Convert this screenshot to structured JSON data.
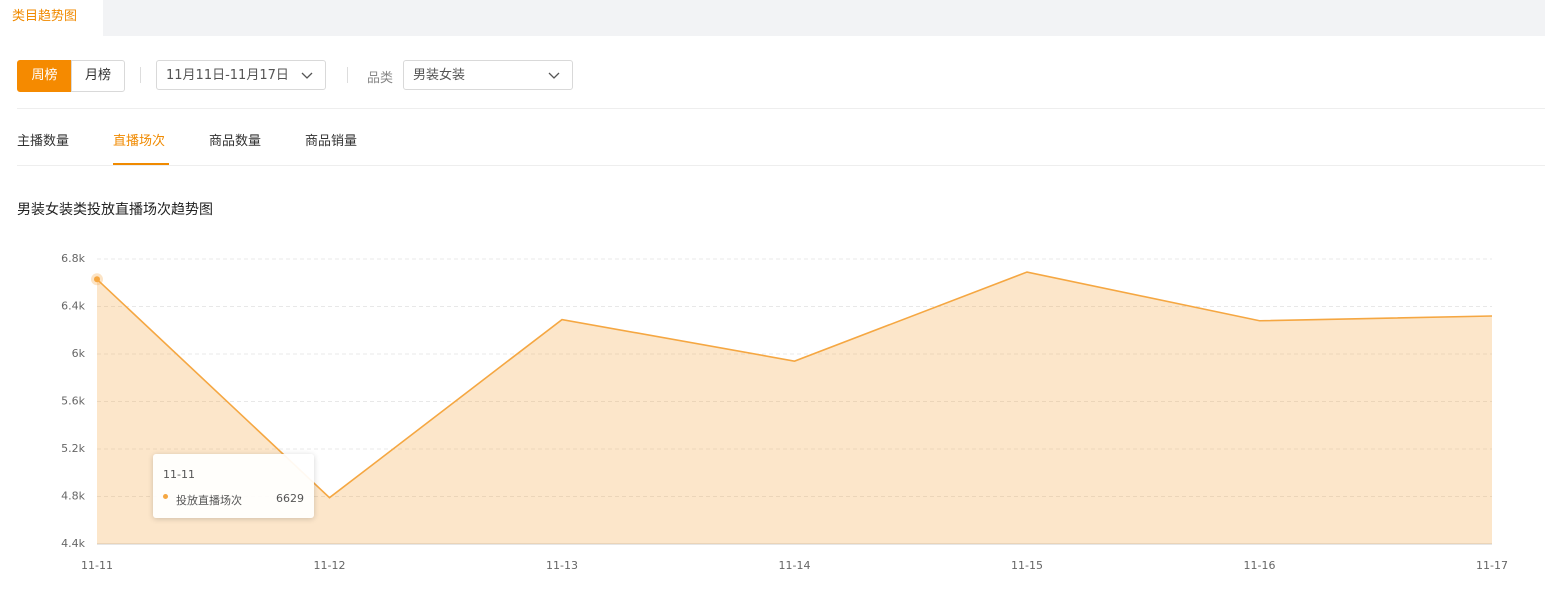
{
  "header": {
    "tab": "类目趋势图"
  },
  "filters": {
    "period_buttons": [
      "周榜",
      "月榜"
    ],
    "date_range": "11月11日-11月17日",
    "category_label": "品类",
    "category_value": "男装女装"
  },
  "metric_tabs": [
    "主播数量",
    "直播场次",
    "商品数量",
    "商品销量"
  ],
  "chart_data": {
    "type": "area",
    "title": "男装女装类投放直播场次趋势图",
    "categories": [
      "11-11",
      "11-12",
      "11-13",
      "11-14",
      "11-15",
      "11-16",
      "11-17"
    ],
    "series": [
      {
        "name": "投放直播场次",
        "color": "#f5a742",
        "values": [
          6629,
          4790,
          6290,
          5940,
          6690,
          6280,
          6320
        ]
      }
    ],
    "ylim": [
      4400,
      6800
    ],
    "yticks": [
      {
        "value": 4400,
        "label": "4.4k"
      },
      {
        "value": 4800,
        "label": "4.8k"
      },
      {
        "value": 5200,
        "label": "5.2k"
      },
      {
        "value": 5600,
        "label": "5.6k"
      },
      {
        "value": 6000,
        "label": "6k"
      },
      {
        "value": 6400,
        "label": "6.4k"
      },
      {
        "value": 6800,
        "label": "6.8k"
      }
    ],
    "grid": true
  }
}
